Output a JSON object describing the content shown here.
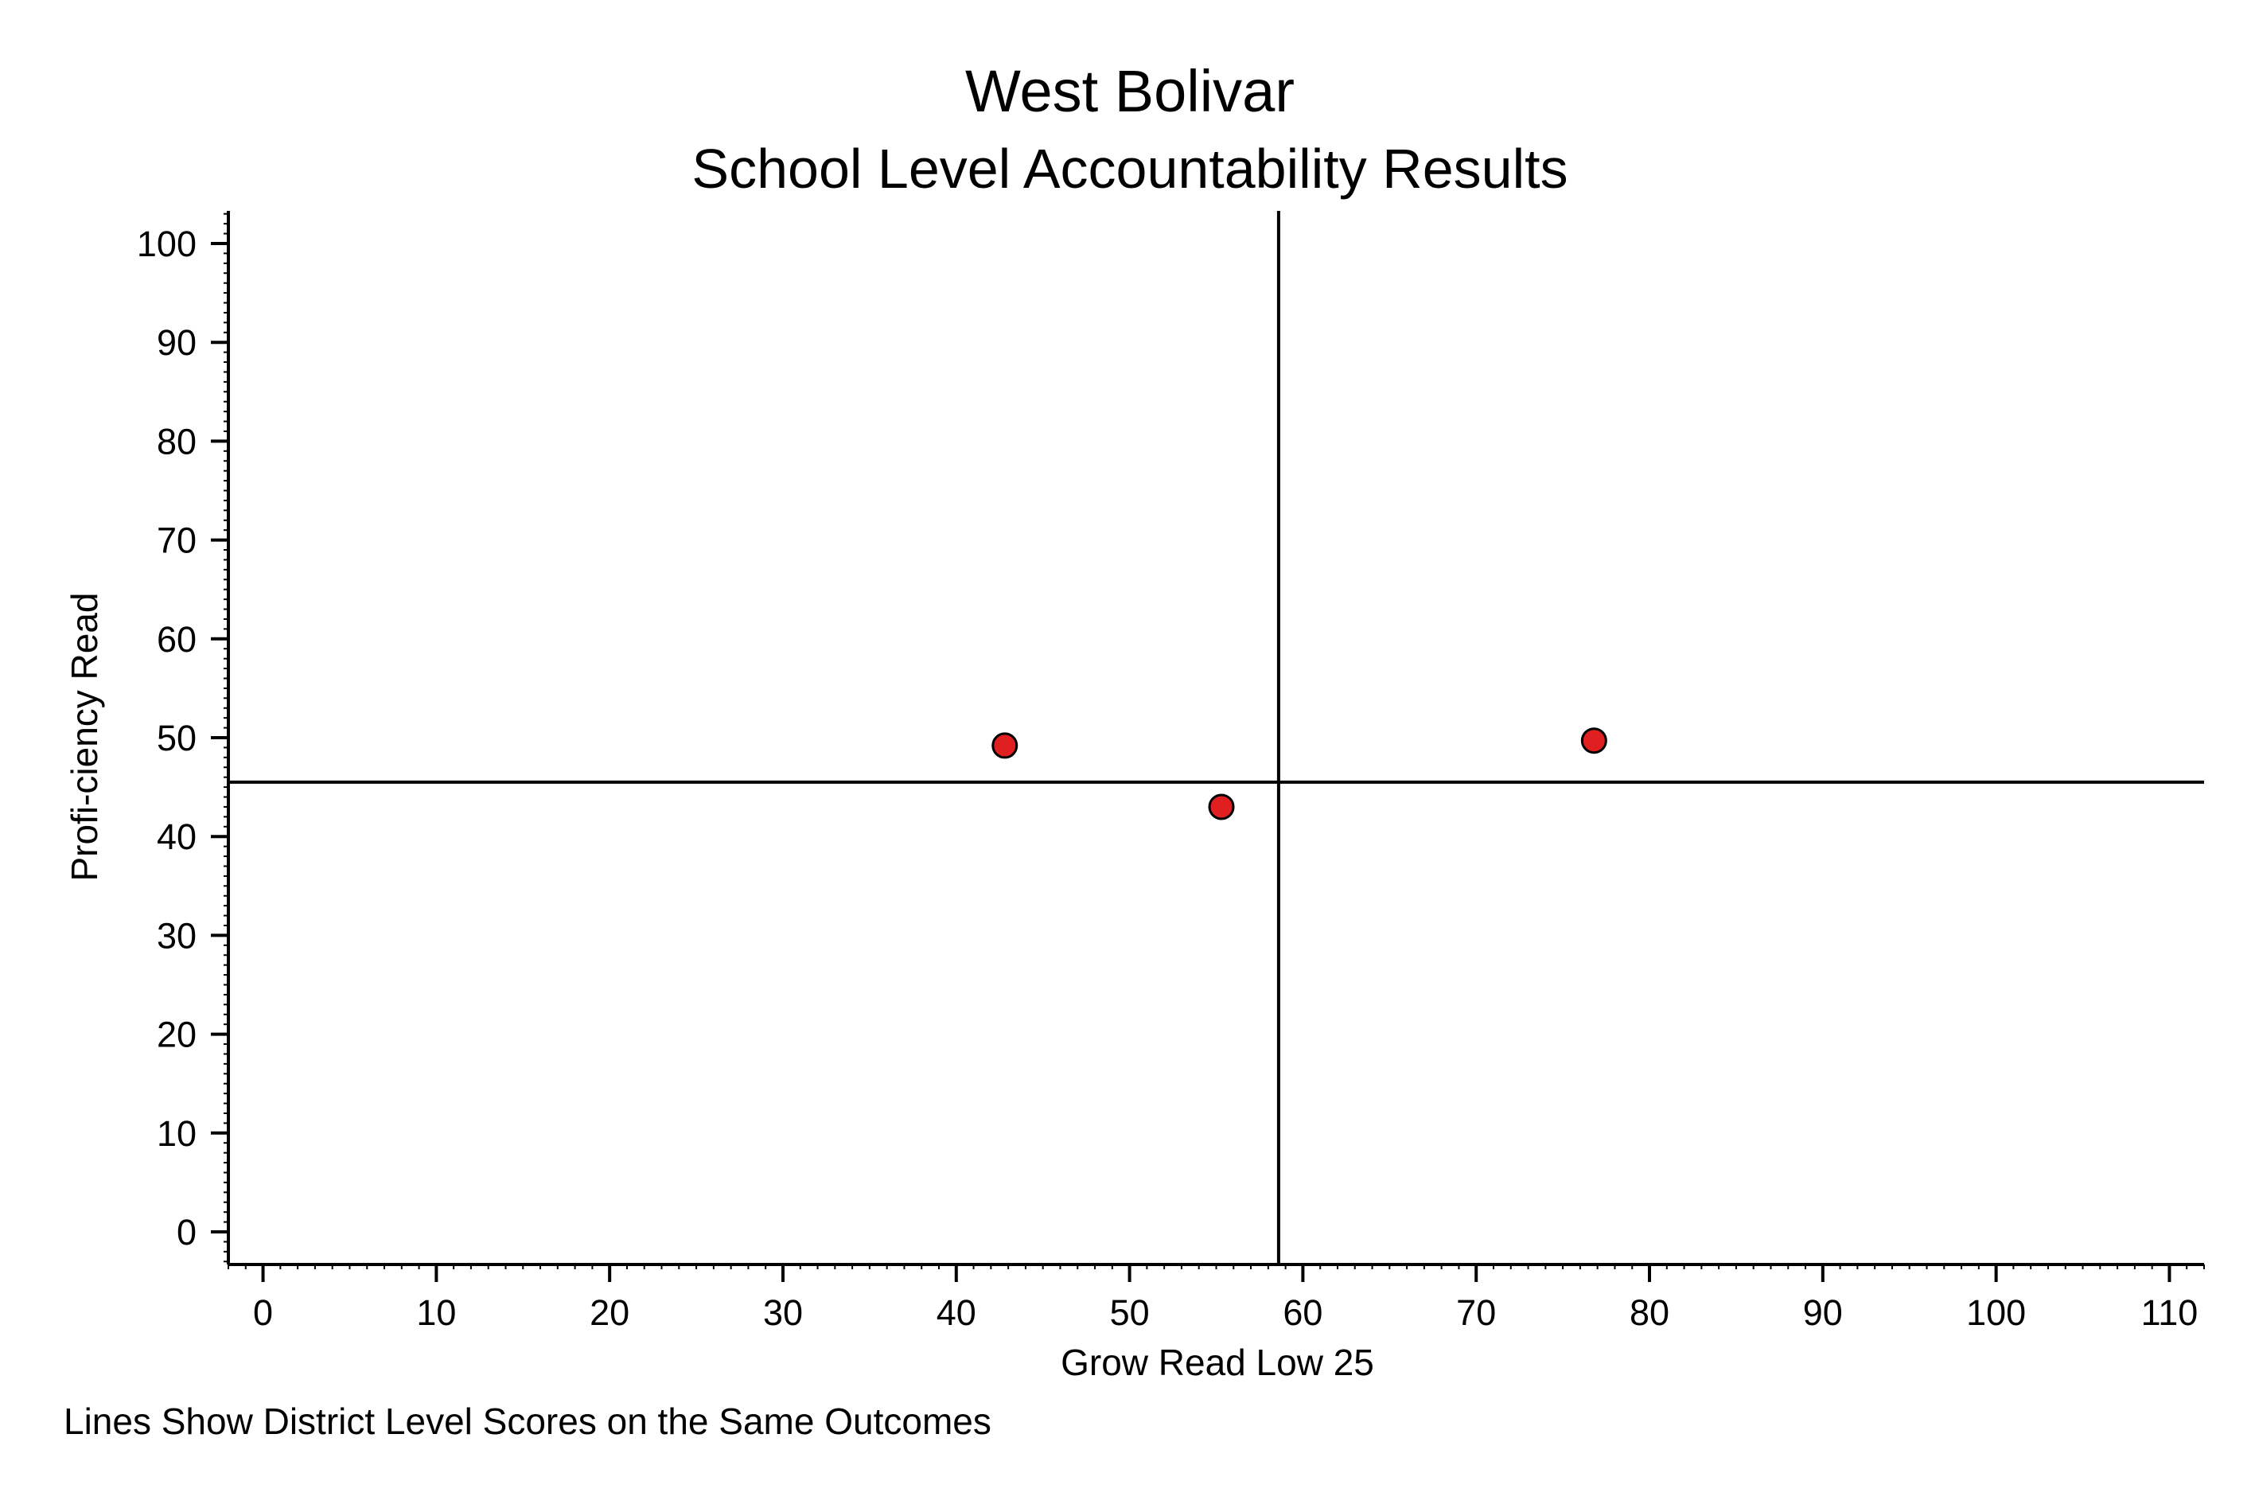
{
  "chart_data": {
    "type": "scatter",
    "title": "West Bolivar",
    "subtitle": "School Level Accountability Results",
    "xlabel": "Grow Read Low 25",
    "ylabel": "Profi-ciency Read",
    "note": "Lines Show District Level Scores on the Same Outcomes",
    "xlim": [
      -2,
      112
    ],
    "ylim": [
      -3.3,
      103.3
    ],
    "x_ticks": [
      0,
      10,
      20,
      30,
      40,
      50,
      60,
      70,
      80,
      90,
      100,
      110
    ],
    "y_ticks": [
      0,
      10,
      20,
      30,
      40,
      50,
      60,
      70,
      80,
      90,
      100
    ],
    "grid": false,
    "reference_lines": {
      "x": 58.6,
      "y": 45.5
    },
    "marker_color": "#e02020",
    "marker_edge_color": "#000000",
    "points": [
      {
        "x": 42.8,
        "y": 49.2
      },
      {
        "x": 55.3,
        "y": 43.0
      },
      {
        "x": 76.8,
        "y": 49.7
      }
    ]
  }
}
